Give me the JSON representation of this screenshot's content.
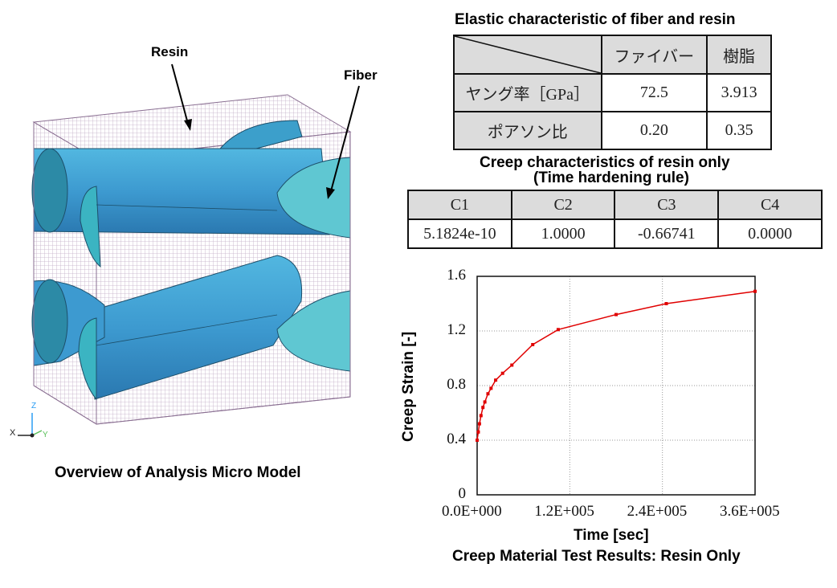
{
  "model": {
    "resin_label": "Resin",
    "fiber_label": "Fiber",
    "caption": "Overview of Analysis Micro Model",
    "axis_x": "X",
    "axis_y": "Y",
    "axis_z": "Z",
    "colors": {
      "resin_mesh": "#c2aec6",
      "fiber_body": "#3d9ad0",
      "fiber_face": "#5fc7d2",
      "fiber_dark": "#2a7fa0"
    }
  },
  "elastic": {
    "title": "Elastic characteristic of fiber and resin",
    "headers": [
      "ファイバー",
      "樹脂"
    ],
    "rows": [
      {
        "label": "ヤング率［GPa］",
        "values": [
          "72.5",
          "3.913"
        ]
      },
      {
        "label": "ポアソン比",
        "values": [
          "0.20",
          "0.35"
        ]
      }
    ]
  },
  "creep": {
    "title_line1": "Creep characteristics of resin only",
    "title_line2": "(Time hardening rule)",
    "headers": [
      "C1",
      "C2",
      "C3",
      "C4"
    ],
    "values": [
      "5.1824e-10",
      "1.0000",
      "-0.66741",
      "0.0000"
    ]
  },
  "chart_data": {
    "type": "line",
    "title": "Creep Material Test Results: Resin Only",
    "xlabel": "Time [sec]",
    "ylabel": "Creep Strain [-]",
    "xlim": [
      0,
      360000
    ],
    "ylim": [
      0,
      1.6
    ],
    "x_ticks": [
      "0.0E+000",
      "1.2E+005",
      "2.4E+005",
      "3.6E+005"
    ],
    "y_ticks": [
      "0",
      "0.4",
      "0.8",
      "1.2",
      "1.6"
    ],
    "grid": true,
    "series": [
      {
        "color": "#e00000",
        "x": [
          0,
          1500,
          3000,
          5000,
          7500,
          10000,
          14000,
          18000,
          24000,
          33000,
          45000,
          72000,
          105000,
          180000,
          245000,
          360000
        ],
        "y": [
          0.4,
          0.46,
          0.52,
          0.58,
          0.64,
          0.68,
          0.74,
          0.78,
          0.84,
          0.89,
          0.95,
          1.1,
          1.21,
          1.32,
          1.4,
          1.49
        ]
      }
    ]
  }
}
